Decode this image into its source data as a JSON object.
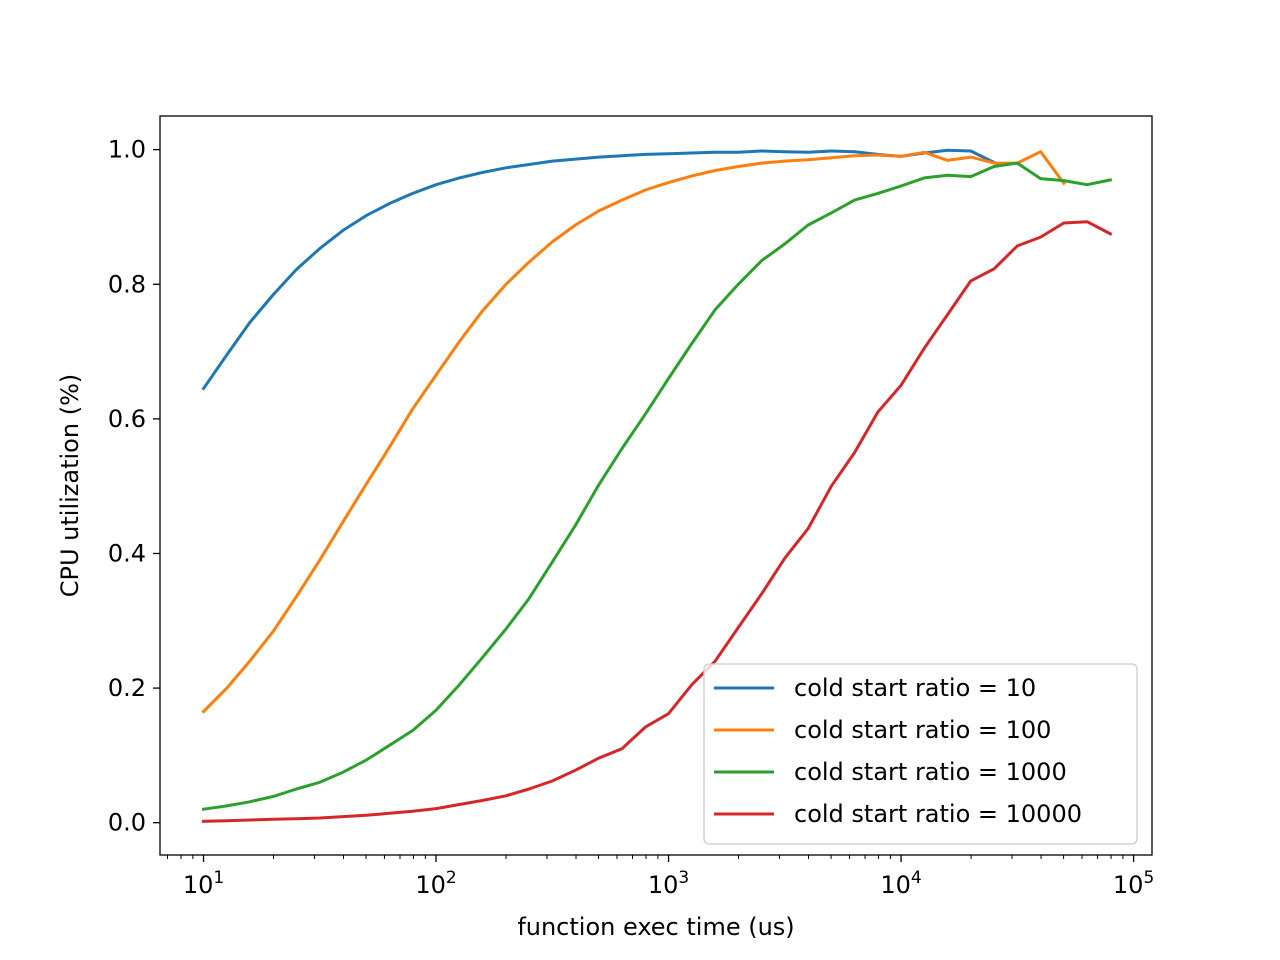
{
  "chart_data": {
    "type": "line",
    "title": "",
    "xlabel": "function exec time (us)",
    "ylabel": "CPU utilization (%)",
    "xscale": "log",
    "xlim": [
      6.5,
      120000
    ],
    "ylim": [
      -0.048,
      1.05
    ],
    "grid": false,
    "legend_position": "lower-right",
    "x_ticks": [
      {
        "value": 10,
        "base": "10",
        "exp": "1"
      },
      {
        "value": 100,
        "base": "10",
        "exp": "2"
      },
      {
        "value": 1000,
        "base": "10",
        "exp": "3"
      },
      {
        "value": 10000,
        "base": "10",
        "exp": "4"
      },
      {
        "value": 100000,
        "base": "10",
        "exp": "5"
      }
    ],
    "y_ticks": [
      {
        "value": 0.0,
        "label": "0.0"
      },
      {
        "value": 0.2,
        "label": "0.2"
      },
      {
        "value": 0.4,
        "label": "0.4"
      },
      {
        "value": 0.6,
        "label": "0.6"
      },
      {
        "value": 0.8,
        "label": "0.8"
      },
      {
        "value": 1.0,
        "label": "1.0"
      }
    ],
    "series": [
      {
        "name": "cold start ratio = 10",
        "color": "#1f77b4",
        "x": [
          10,
          12.6,
          15.8,
          20,
          25.1,
          31.6,
          39.8,
          50.1,
          63.1,
          79.4,
          100,
          126,
          158,
          200,
          251,
          316,
          398,
          501,
          631,
          794,
          1000,
          1259,
          1585,
          1995,
          2512,
          3162,
          3981,
          5012,
          6310,
          7943,
          10000,
          12589,
          15849,
          19953,
          25119
        ],
        "values": [
          0.645,
          0.695,
          0.743,
          0.785,
          0.822,
          0.853,
          0.88,
          0.902,
          0.92,
          0.935,
          0.948,
          0.958,
          0.966,
          0.973,
          0.978,
          0.983,
          0.986,
          0.989,
          0.991,
          0.993,
          0.994,
          0.995,
          0.996,
          0.996,
          0.998,
          0.997,
          0.996,
          0.998,
          0.997,
          0.993,
          0.99,
          0.995,
          0.999,
          0.998,
          0.981
        ]
      },
      {
        "name": "cold start ratio = 100",
        "color": "#ff7f0e",
        "x": [
          10,
          12.6,
          15.8,
          20,
          25.1,
          31.6,
          39.8,
          50.1,
          63.1,
          79.4,
          100,
          126,
          158,
          200,
          251,
          316,
          398,
          501,
          631,
          794,
          1000,
          1259,
          1585,
          1995,
          2512,
          3162,
          3981,
          5012,
          6310,
          7943,
          10000,
          12589,
          15849,
          19953,
          25119,
          31623,
          39811,
          50119
        ],
        "values": [
          0.165,
          0.2,
          0.24,
          0.285,
          0.336,
          0.39,
          0.447,
          0.503,
          0.558,
          0.615,
          0.665,
          0.715,
          0.76,
          0.8,
          0.833,
          0.863,
          0.888,
          0.909,
          0.925,
          0.94,
          0.951,
          0.961,
          0.969,
          0.975,
          0.98,
          0.983,
          0.985,
          0.988,
          0.991,
          0.992,
          0.99,
          0.996,
          0.984,
          0.989,
          0.98,
          0.98,
          0.997,
          0.95
        ]
      },
      {
        "name": "cold start ratio = 1000",
        "color": "#2ca02c",
        "x": [
          10,
          12.6,
          15.8,
          20,
          25.1,
          31.6,
          39.8,
          50.1,
          63.1,
          79.4,
          100,
          126,
          158,
          200,
          251,
          316,
          398,
          501,
          631,
          794,
          1000,
          1259,
          1585,
          1995,
          2512,
          3162,
          3981,
          5012,
          6310,
          7943,
          10000,
          12589,
          15849,
          19953,
          25119,
          31623,
          39811,
          50119,
          63096,
          79433
        ],
        "values": [
          0.02,
          0.025,
          0.031,
          0.039,
          0.05,
          0.06,
          0.075,
          0.093,
          0.115,
          0.137,
          0.167,
          0.205,
          0.245,
          0.288,
          0.333,
          0.387,
          0.442,
          0.502,
          0.556,
          0.607,
          0.66,
          0.712,
          0.762,
          0.8,
          0.835,
          0.86,
          0.888,
          0.906,
          0.925,
          0.935,
          0.946,
          0.958,
          0.962,
          0.96,
          0.975,
          0.98,
          0.957,
          0.954,
          0.948,
          0.955
        ]
      },
      {
        "name": "cold start ratio = 10000",
        "color": "#d62728",
        "x": [
          10,
          12.6,
          15.8,
          20,
          25.1,
          31.6,
          39.8,
          50.1,
          63.1,
          79.4,
          100,
          126,
          158,
          200,
          251,
          316,
          398,
          501,
          631,
          794,
          1000,
          1259,
          1585,
          1995,
          2512,
          3162,
          3981,
          5012,
          6310,
          7943,
          10000,
          12589,
          15849,
          19953,
          25119,
          31623,
          39811,
          50119,
          63096,
          79433
        ],
        "values": [
          0.002,
          0.003,
          0.004,
          0.005,
          0.006,
          0.007,
          0.009,
          0.011,
          0.014,
          0.017,
          0.021,
          0.027,
          0.033,
          0.04,
          0.05,
          0.062,
          0.078,
          0.096,
          0.11,
          0.142,
          0.162,
          0.205,
          0.24,
          0.29,
          0.34,
          0.393,
          0.437,
          0.5,
          0.55,
          0.61,
          0.65,
          0.705,
          0.755,
          0.805,
          0.823,
          0.857,
          0.87,
          0.891,
          0.893,
          0.875
        ]
      }
    ]
  }
}
